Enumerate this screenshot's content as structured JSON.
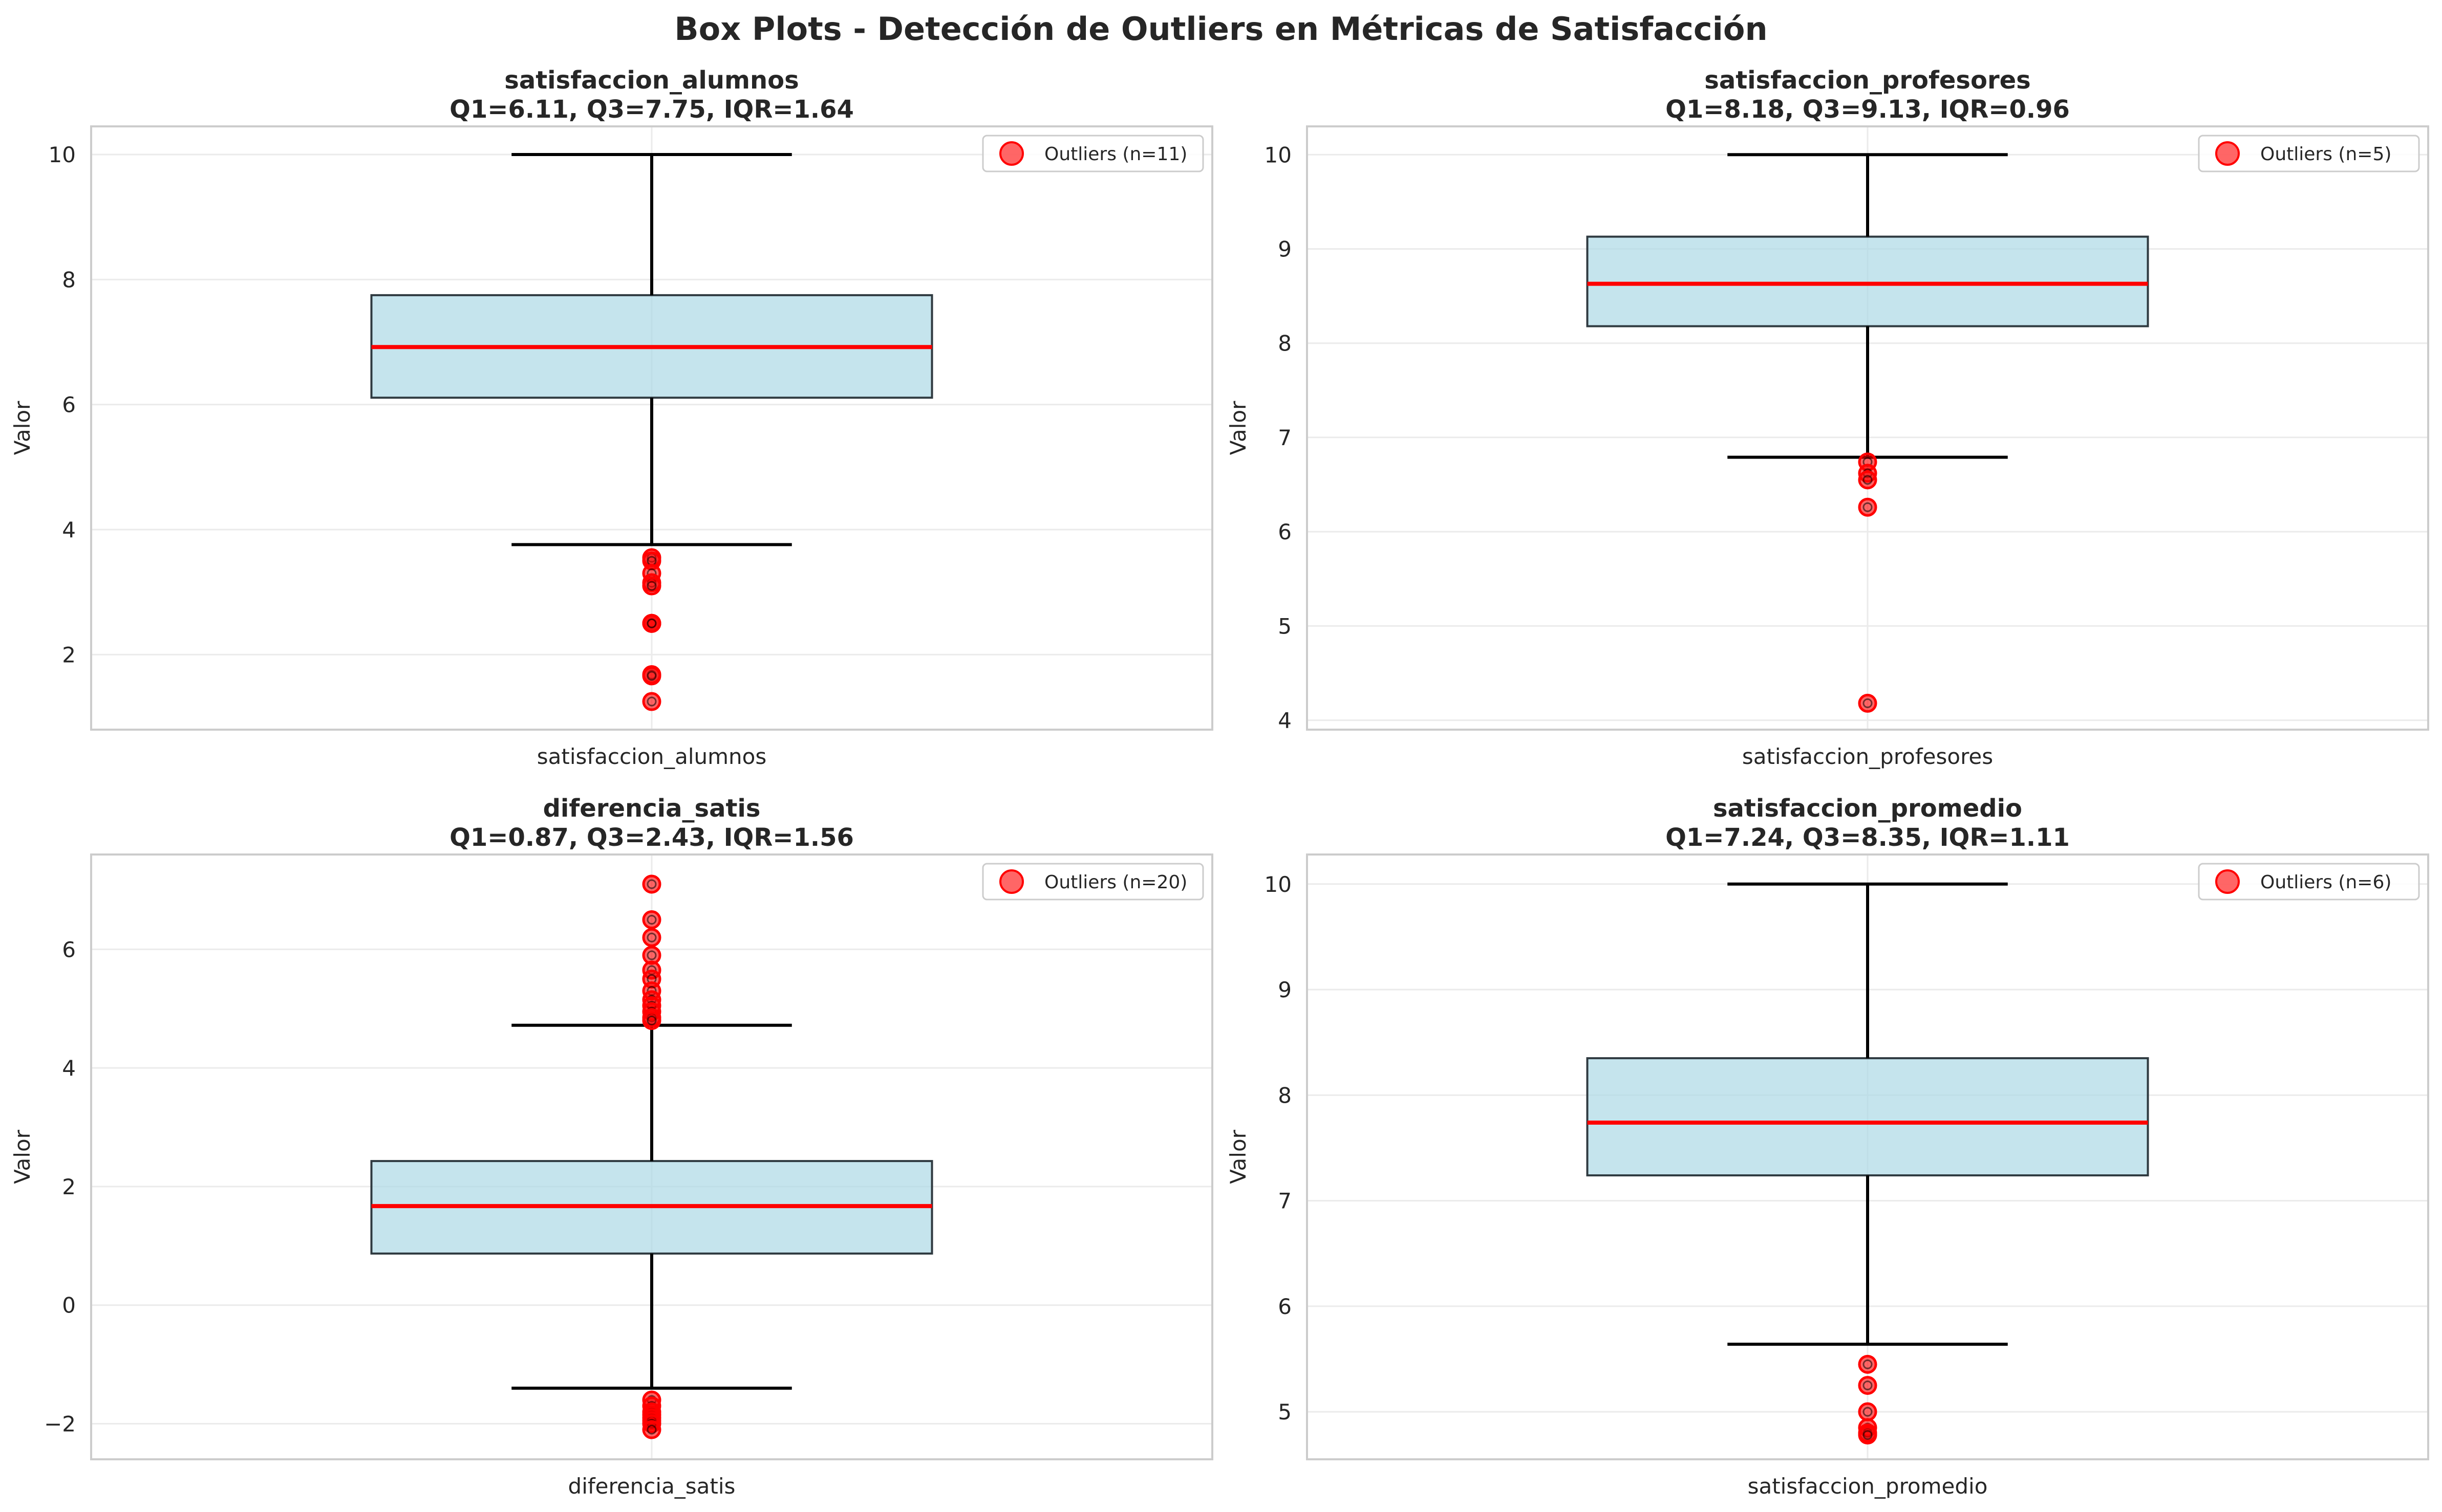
{
  "figure": {
    "title": "Box Plots - Detección de Outliers en Métricas de Satisfacción"
  },
  "colors": {
    "box_fill": "#add8e6",
    "box_edge": "#2f3a40",
    "median": "#ff0000",
    "whisker": "#000000",
    "outlier": "#ff0000",
    "grid": "#ebebeb",
    "spine": "#cccccc",
    "text": "#262626"
  },
  "chart_data": [
    {
      "type": "box",
      "title": "satisfaccion_alumnos",
      "subtitle": "Q1=6.11, Q3=7.75, IQR=1.64",
      "category": "satisfaccion_alumnos",
      "ylabel": "Valor",
      "ylim": [
        0.8,
        10.45
      ],
      "yticks": [
        2,
        4,
        6,
        8,
        10
      ],
      "grid": true,
      "legend_position": "top-right",
      "legend_label": "Outliers (n=11)",
      "stats": {
        "whisker_low": 3.76,
        "q1": 6.11,
        "median": 6.92,
        "q3": 7.75,
        "whisker_high": 10.0
      },
      "outliers": [
        3.55,
        3.5,
        3.3,
        3.15,
        3.1,
        2.5,
        2.5,
        2.5,
        1.68,
        1.66,
        1.25
      ]
    },
    {
      "type": "box",
      "title": "satisfaccion_profesores",
      "subtitle": "Q1=8.18, Q3=9.13, IQR=0.96",
      "category": "satisfaccion_profesores",
      "ylabel": "Valor",
      "ylim": [
        3.9,
        10.3
      ],
      "yticks": [
        4,
        5,
        6,
        7,
        8,
        9,
        10
      ],
      "grid": true,
      "legend_position": "top-right",
      "legend_label": "Outliers (n=5)",
      "stats": {
        "whisker_low": 6.79,
        "q1": 8.18,
        "median": 8.63,
        "q3": 9.13,
        "whisker_high": 10.0
      },
      "outliers": [
        6.74,
        6.62,
        6.55,
        6.26,
        4.18
      ]
    },
    {
      "type": "box",
      "title": "diferencia_satis",
      "subtitle": "Q1=0.87, Q3=2.43, IQR=1.56",
      "category": "diferencia_satis",
      "ylabel": "Valor",
      "ylim": [
        -2.6,
        7.6
      ],
      "yticks": [
        -2,
        0,
        2,
        4,
        6
      ],
      "tick_labels": [
        "−2",
        "0",
        "2",
        "4",
        "6"
      ],
      "grid": true,
      "legend_position": "top-right",
      "legend_label": "Outliers (n=20)",
      "stats": {
        "whisker_low": -1.4,
        "q1": 0.87,
        "median": 1.67,
        "q3": 2.43,
        "whisker_high": 4.72
      },
      "outliers": [
        7.1,
        6.5,
        6.2,
        5.9,
        5.65,
        5.5,
        5.3,
        5.15,
        5.05,
        4.95,
        4.85,
        4.8,
        -1.6,
        -1.7,
        -1.8,
        -1.85,
        -1.9,
        -1.95,
        -2.0,
        -2.1
      ]
    },
    {
      "type": "box",
      "title": "satisfaccion_promedio",
      "subtitle": "Q1=7.24, Q3=8.35, IQR=1.11",
      "category": "satisfaccion_promedio",
      "ylabel": "Valor",
      "ylim": [
        4.55,
        10.28
      ],
      "yticks": [
        5,
        6,
        7,
        8,
        9,
        10
      ],
      "grid": true,
      "legend_position": "top-right",
      "legend_label": "Outliers (n=6)",
      "stats": {
        "whisker_low": 5.64,
        "q1": 7.24,
        "median": 7.74,
        "q3": 8.35,
        "whisker_high": 10.0
      },
      "outliers": [
        5.45,
        5.25,
        5.0,
        4.85,
        4.8,
        4.78
      ]
    }
  ]
}
